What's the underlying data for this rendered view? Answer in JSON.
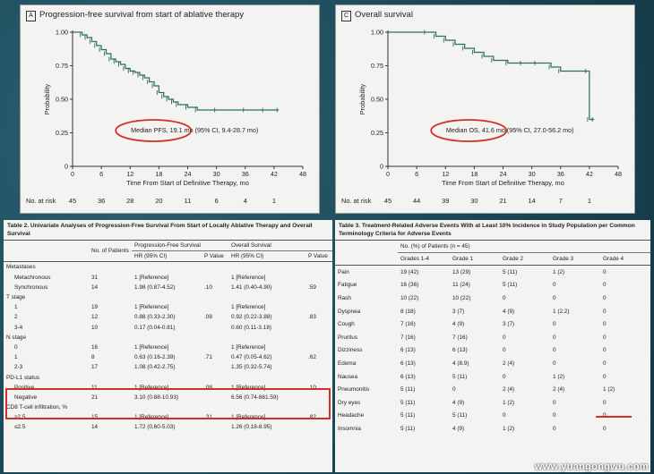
{
  "chart_data": [
    {
      "type": "line",
      "panel": "A",
      "title": "Progression-free survival from start of ablative therapy",
      "xlabel": "Time From Start of Definitive Therapy, mo",
      "ylabel": "Probability",
      "xlim": [
        0,
        48
      ],
      "ylim": [
        0,
        1
      ],
      "x_ticks": [
        "0",
        "6",
        "12",
        "18",
        "24",
        "30",
        "36",
        "42",
        "48"
      ],
      "y_ticks": [
        "0",
        "0.25",
        "0.50",
        "0.75",
        "1.00"
      ],
      "annotation": "Median PFS, 19.1 mo (95% CI, 9.4-28.7 mo)",
      "risk_label": "No. at risk",
      "at_risk": [
        "45",
        "36",
        "28",
        "20",
        "11",
        "6",
        "4",
        "1"
      ],
      "series": [
        {
          "x": [
            0,
            2,
            3,
            4,
            5,
            6,
            7,
            8,
            9,
            10,
            11,
            12,
            13,
            14,
            15,
            16,
            17,
            18,
            19,
            20,
            21,
            22,
            24,
            26,
            30,
            36,
            40,
            43
          ],
          "y": [
            1,
            0.98,
            0.96,
            0.93,
            0.9,
            0.87,
            0.84,
            0.8,
            0.78,
            0.76,
            0.73,
            0.71,
            0.7,
            0.68,
            0.66,
            0.63,
            0.6,
            0.55,
            0.52,
            0.5,
            0.48,
            0.46,
            0.44,
            0.42,
            0.42,
            0.42,
            0.42,
            0.42
          ]
        }
      ]
    },
    {
      "type": "line",
      "panel": "C",
      "title": "Overall survival",
      "xlabel": "Time From Start of Definitive Therapy, mo",
      "ylabel": "Probability",
      "xlim": [
        0,
        48
      ],
      "ylim": [
        0,
        1
      ],
      "x_ticks": [
        "0",
        "6",
        "12",
        "18",
        "24",
        "30",
        "36",
        "42",
        "48"
      ],
      "y_ticks": [
        "0",
        "0.25",
        "0.50",
        "0.75",
        "1.00"
      ],
      "annotation": "Median OS, 41.6 mo (95% CI, 27.0-56.2 mo)",
      "risk_label": "No. at risk",
      "at_risk": [
        "45",
        "44",
        "39",
        "30",
        "21",
        "14",
        "7",
        "1"
      ],
      "series": [
        {
          "x": [
            0,
            8,
            10,
            12,
            14,
            16,
            18,
            20,
            22,
            25,
            28,
            31,
            34,
            36,
            41.6,
            42,
            43
          ],
          "y": [
            1,
            1,
            0.97,
            0.94,
            0.91,
            0.88,
            0.85,
            0.82,
            0.79,
            0.77,
            0.77,
            0.77,
            0.74,
            0.71,
            0.71,
            0.35,
            0.35
          ]
        }
      ]
    }
  ],
  "table2": {
    "caption": "Table 2. Univariate Analyses of Progression-Free Survival From Start of Locally Ablative Therapy and Overall Survival",
    "head": {
      "col1": "",
      "patients": "No. of Patients",
      "pfs": "Progression-Free Survival",
      "os": "Overall Survival",
      "hr": "HR (95% CI)",
      "p": "P Value"
    },
    "rows": [
      {
        "label": "Metastases",
        "n": "",
        "pfs": "",
        "pp": "",
        "os": "",
        "op": "",
        "group": true
      },
      {
        "label": "Metachronous",
        "n": "31",
        "pfs": "1 [Reference]",
        "pp": "",
        "os": "1 [Reference]",
        "op": ""
      },
      {
        "label": "Synchronous",
        "n": "14",
        "pfs": "1.98 (0.87-4.52)",
        "pp": ".10",
        "os": "1.41 (0.40-4.90)",
        "op": ".59"
      },
      {
        "label": "T stage",
        "n": "",
        "pfs": "",
        "pp": "",
        "os": "",
        "op": "",
        "group": true
      },
      {
        "label": "1",
        "n": "19",
        "pfs": "1 [Reference]",
        "pp": "",
        "os": "1 [Reference]",
        "op": ""
      },
      {
        "label": "2",
        "n": "12",
        "pfs": "0.88 (0.33-2.30)",
        "pp": ".08",
        "os": "0.92 (0.22-3.88)",
        "op": ".83"
      },
      {
        "label": "3-4",
        "n": "10",
        "pfs": "0.17 (0.04-0.81)",
        "pp": "",
        "os": "0.60 (0.11-3.18)",
        "op": ""
      },
      {
        "label": "N stage",
        "n": "",
        "pfs": "",
        "pp": "",
        "os": "",
        "op": "",
        "group": true
      },
      {
        "label": "0",
        "n": "16",
        "pfs": "1 [Reference]",
        "pp": "",
        "os": "1 [Reference]",
        "op": ""
      },
      {
        "label": "1",
        "n": "8",
        "pfs": "0.63 (0.16-2.39)",
        "pp": ".71",
        "os": "0.47 (0.05-4.62)",
        "op": ".62"
      },
      {
        "label": "2-3",
        "n": "17",
        "pfs": "1.08 (0.42-2.75)",
        "pp": "",
        "os": "1.35 (0.32-5.74)",
        "op": ""
      },
      {
        "label": "PD-L1 status",
        "n": "",
        "pfs": "",
        "pp": "",
        "os": "",
        "op": "",
        "group": true
      },
      {
        "label": "Positive",
        "n": "11",
        "pfs": "1 [Reference]",
        "pp": ".08",
        "os": "1 [Reference]",
        "op": ".10"
      },
      {
        "label": "Negative",
        "n": "21",
        "pfs": "3.10 (0.88-10.93)",
        "pp": "",
        "os": "6.56 (0.74-861.59)",
        "op": ""
      },
      {
        "label": "CD8 T-cell infiltration, %",
        "n": "",
        "pfs": "",
        "pp": "",
        "os": "",
        "op": "",
        "group": true
      },
      {
        "label": "≥2.5",
        "n": "15",
        "pfs": "1 [Reference]",
        "pp": ".31",
        "os": "1 [Reference]",
        "op": ".82"
      },
      {
        "label": "≤2.5",
        "n": "14",
        "pfs": "1.72 (0.60-5.03)",
        "pp": "",
        "os": "1.26 (0.18-8.95)",
        "op": ""
      }
    ]
  },
  "table3": {
    "caption": "Table 3. Treatment-Related Adverse Events With at Least 10% Incidence in Study Population per Common Terminology Criteria for Adverse Events",
    "span_head": "No. (%) of Patients (n = 45)",
    "cols": [
      "Grades 1-4",
      "Grade 1",
      "Grade 2",
      "Grade 3",
      "Grade 4"
    ],
    "rows": [
      {
        "label": "Pain",
        "v": [
          "19 (42)",
          "13 (29)",
          "5 (11)",
          "1 (2)",
          "0"
        ]
      },
      {
        "label": "Fatigue",
        "v": [
          "16 (36)",
          "11 (24)",
          "5 (11)",
          "0",
          "0"
        ]
      },
      {
        "label": "Rash",
        "v": [
          "10 (22)",
          "10 (22)",
          "0",
          "0",
          "0"
        ]
      },
      {
        "label": "Dyspnea",
        "v": [
          "8 (18)",
          "3 (7)",
          "4 (9)",
          "1 (2.2)",
          "0"
        ]
      },
      {
        "label": "Cough",
        "v": [
          "7 (16)",
          "4 (9)",
          "3 (7)",
          "0",
          "0"
        ]
      },
      {
        "label": "Pruritus",
        "v": [
          "7 (16)",
          "7 (16)",
          "0",
          "0",
          "0"
        ]
      },
      {
        "label": "Dizziness",
        "v": [
          "6 (13)",
          "6 (13)",
          "0",
          "0",
          "0"
        ]
      },
      {
        "label": "Edema",
        "v": [
          "6 (13)",
          "4 (8.9)",
          "2 (4)",
          "0",
          "0"
        ]
      },
      {
        "label": "Nausea",
        "v": [
          "6 (13)",
          "5 (11)",
          "0",
          "1 (2)",
          "0"
        ]
      },
      {
        "label": "Pneumonitis",
        "v": [
          "5 (11)",
          "0",
          "2 (4)",
          "2 (4)",
          "1 (2)"
        ]
      },
      {
        "label": "Dry eyes",
        "v": [
          "5 (11)",
          "4 (9)",
          "1 (2)",
          "0",
          "0"
        ]
      },
      {
        "label": "Headache",
        "v": [
          "5 (11)",
          "5 (11)",
          "0",
          "0",
          "0"
        ]
      },
      {
        "label": "Insomnia",
        "v": [
          "5 (11)",
          "4 (9)",
          "1 (2)",
          "0",
          "0"
        ]
      }
    ]
  },
  "watermark": "www.yuangongwu.com",
  "colors": {
    "curve": "#2e6b66",
    "highlight": "#d0302a",
    "background": "#1d4a5a"
  }
}
